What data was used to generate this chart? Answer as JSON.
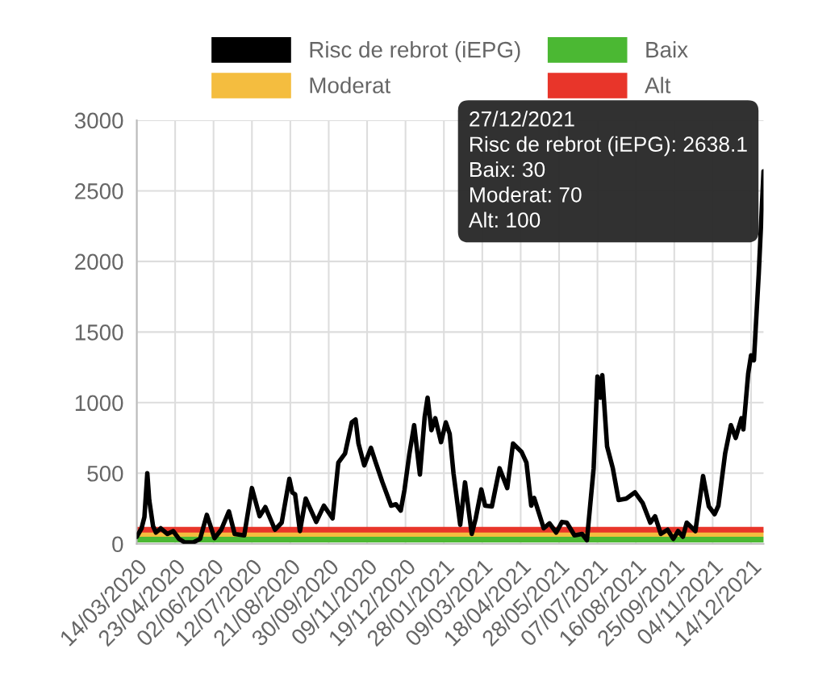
{
  "chart_data": {
    "type": "line",
    "xlim": [
      "2020-03-14",
      "2021-12-27"
    ],
    "xticks": [
      {
        "value": "2020-03-14",
        "label": "14/03/2020"
      },
      {
        "value": "2020-04-23",
        "label": "23/04/2020"
      },
      {
        "value": "2020-06-02",
        "label": "02/06/2020"
      },
      {
        "value": "2020-07-12",
        "label": "12/07/2020"
      },
      {
        "value": "2020-08-21",
        "label": "21/08/2020"
      },
      {
        "value": "2020-09-30",
        "label": "30/09/2020"
      },
      {
        "value": "2020-11-09",
        "label": "09/11/2020"
      },
      {
        "value": "2020-12-19",
        "label": "19/12/2020"
      },
      {
        "value": "2021-01-28",
        "label": "28/01/2021"
      },
      {
        "value": "2021-03-09",
        "label": "09/03/2021"
      },
      {
        "value": "2021-04-18",
        "label": "18/04/2021"
      },
      {
        "value": "2021-05-28",
        "label": "28/05/2021"
      },
      {
        "value": "2021-07-07",
        "label": "07/07/2021"
      },
      {
        "value": "2021-08-16",
        "label": "16/08/2021"
      },
      {
        "value": "2021-09-25",
        "label": "25/09/2021"
      },
      {
        "value": "2021-11-04",
        "label": "04/11/2021"
      },
      {
        "value": "2021-12-14",
        "label": "14/12/2021"
      }
    ],
    "ylim": [
      0,
      3000
    ],
    "yticks": [
      0,
      500,
      1000,
      1500,
      2000,
      2500,
      3000
    ],
    "grid": true,
    "legend": "top",
    "marker": "none",
    "line_style": "solid",
    "series": [
      {
        "name": "Risc de rebrot (iEPG)",
        "color": "#000000",
        "x": [
          "2020-03-14",
          "2020-03-19",
          "2020-03-22",
          "2020-03-25",
          "2020-03-27",
          "2020-03-31",
          "2020-04-03",
          "2020-04-08",
          "2020-04-15",
          "2020-04-21",
          "2020-04-27",
          "2020-05-03",
          "2020-05-12",
          "2020-05-19",
          "2020-05-26",
          "2020-06-03",
          "2020-06-10",
          "2020-06-18",
          "2020-06-24",
          "2020-07-04",
          "2020-07-12",
          "2020-07-20",
          "2020-07-26",
          "2020-08-05",
          "2020-08-12",
          "2020-08-20",
          "2020-08-23",
          "2020-08-26",
          "2020-08-31",
          "2020-09-06",
          "2020-09-17",
          "2020-09-25",
          "2020-10-04",
          "2020-10-10",
          "2020-10-17",
          "2020-10-24",
          "2020-10-28",
          "2020-10-31",
          "2020-11-06",
          "2020-11-13",
          "2020-11-18",
          "2020-11-25",
          "2020-12-04",
          "2020-12-09",
          "2020-12-14",
          "2020-12-18",
          "2020-12-23",
          "2020-12-28",
          "2021-01-03",
          "2021-01-08",
          "2021-01-11",
          "2021-01-15",
          "2021-01-19",
          "2021-01-25",
          "2021-01-30",
          "2021-02-03",
          "2021-02-07",
          "2021-02-14",
          "2021-02-19",
          "2021-02-26",
          "2021-03-02",
          "2021-03-08",
          "2021-03-12",
          "2021-03-19",
          "2021-03-27",
          "2021-04-04",
          "2021-04-10",
          "2021-04-19",
          "2021-04-24",
          "2021-04-29",
          "2021-05-02",
          "2021-05-12",
          "2021-05-18",
          "2021-05-25",
          "2021-05-31",
          "2021-06-05",
          "2021-06-13",
          "2021-06-21",
          "2021-06-26",
          "2021-07-03",
          "2021-07-07",
          "2021-07-10",
          "2021-07-12",
          "2021-07-17",
          "2021-07-23",
          "2021-07-29",
          "2021-08-06",
          "2021-08-15",
          "2021-08-23",
          "2021-08-31",
          "2021-09-05",
          "2021-09-11",
          "2021-09-18",
          "2021-09-24",
          "2021-09-29",
          "2021-10-04",
          "2021-10-08",
          "2021-10-17",
          "2021-10-25",
          "2021-10-31",
          "2021-11-06",
          "2021-11-10",
          "2021-11-17",
          "2021-11-23",
          "2021-11-28",
          "2021-12-04",
          "2021-12-06",
          "2021-12-11",
          "2021-12-14",
          "2021-12-17",
          "2021-12-22",
          "2021-12-27"
        ],
        "values": [
          50,
          110,
          190,
          500,
          310,
          125,
          80,
          110,
          70,
          90,
          35,
          10,
          10,
          35,
          205,
          40,
          100,
          230,
          70,
          60,
          395,
          195,
          260,
          100,
          150,
          460,
          365,
          350,
          90,
          320,
          155,
          270,
          180,
          575,
          640,
          860,
          880,
          710,
          555,
          680,
          575,
          435,
          270,
          280,
          235,
          385,
          635,
          840,
          490,
          900,
          1035,
          805,
          890,
          720,
          860,
          780,
          500,
          135,
          435,
          70,
          175,
          385,
          270,
          265,
          535,
          395,
          710,
          650,
          575,
          270,
          325,
          110,
          145,
          80,
          155,
          150,
          60,
          70,
          25,
          535,
          1185,
          1035,
          1195,
          690,
          535,
          310,
          320,
          365,
          290,
          150,
          195,
          70,
          100,
          35,
          90,
          50,
          150,
          90,
          480,
          265,
          210,
          270,
          640,
          840,
          750,
          890,
          810,
          1205,
          1335,
          1300,
          1910,
          2638.1
        ]
      },
      {
        "name": "Baix",
        "color": "#4bb833",
        "x": [
          "2020-03-14",
          "2021-12-27"
        ],
        "values": [
          30,
          30
        ]
      },
      {
        "name": "Moderat",
        "color": "#f4bd3f",
        "x": [
          "2020-03-14",
          "2021-12-27"
        ],
        "values": [
          70,
          70
        ]
      },
      {
        "name": "Alt",
        "color": "#e8352a",
        "x": [
          "2020-03-14",
          "2021-12-27"
        ],
        "values": [
          100,
          100
        ]
      }
    ],
    "annotations": [
      {
        "text": "27/12/2021\nRisc de rebrot (iEPG): 2638.1\nBaix: 30\nModerat: 70\nAlt: 100",
        "x": "2021-12-27",
        "y": 2638.1
      }
    ]
  }
}
